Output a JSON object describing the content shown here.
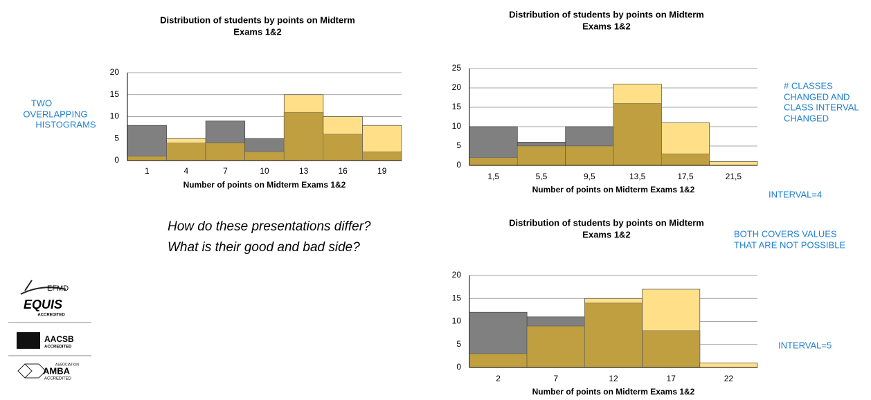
{
  "chart_data": [
    {
      "type": "bar",
      "title": [
        "Distribution of students by points on Midterm",
        "Exams 1&2"
      ],
      "xlabel": "Number of points on Midterm Exams 1&2",
      "categories": [
        1,
        4,
        7,
        10,
        13,
        16,
        19
      ],
      "series": [
        {
          "color": "#808080",
          "values": [
            8,
            4,
            9,
            5,
            11,
            6,
            2
          ]
        },
        {
          "color": "#ffe089",
          "values": [
            1,
            5,
            4,
            2,
            15,
            10,
            8
          ]
        }
      ],
      "overlap_color": "#bf9f3f",
      "ylim": [
        0,
        20
      ],
      "yticks": [
        0,
        5,
        10,
        15,
        20
      ],
      "grid": true
    },
    {
      "type": "bar",
      "title": [
        "Distribution of students by points on Midterm",
        "Exams 1&2"
      ],
      "xlabel": "Number of points on Midterm Exams 1&2",
      "categories": [
        "1,5",
        "5,5",
        "9,5",
        "13,5",
        "17,5",
        "21,5"
      ],
      "series": [
        {
          "color": "#808080",
          "values": [
            10,
            6,
            10,
            16,
            3,
            0
          ]
        },
        {
          "color": "#ffe089",
          "values": [
            2,
            5,
            5,
            21,
            11,
            1
          ]
        }
      ],
      "overlap_color": "#bf9f3f",
      "ylim": [
        0,
        25
      ],
      "yticks": [
        0,
        5,
        10,
        15,
        20,
        25
      ],
      "grid": true
    },
    {
      "type": "bar",
      "title": [
        "Distribution of students by points on Midterm",
        "Exams 1&2"
      ],
      "xlabel": "Number of points on Midterm Exams 1&2",
      "categories": [
        2,
        7,
        12,
        17,
        22
      ],
      "series": [
        {
          "color": "#808080",
          "values": [
            12,
            11,
            14,
            8,
            0
          ]
        },
        {
          "color": "#ffe089",
          "values": [
            3,
            9,
            15,
            17,
            1
          ]
        }
      ],
      "overlap_color": "#bf9f3f",
      "ylim": [
        0,
        20
      ],
      "yticks": [
        0,
        5,
        10,
        15,
        20
      ],
      "grid": true
    }
  ],
  "notes": {
    "left": [
      "TWO",
      "OVERLAPPING",
      "HISTOGRAMS"
    ],
    "right": [
      "# CLASSES",
      "CHANGED AND",
      "CLASS INTERVAL",
      "CHANGED"
    ],
    "interval4": "INTERVAL=4",
    "both": [
      "BOTH COVERS VALUES",
      "THAT ARE NOT POSSIBLE"
    ],
    "interval5": "INTERVAL=5"
  },
  "question": [
    "How do these presentations differ?",
    "What is their good and bad side?"
  ],
  "logos": {
    "efmd": "EFMD",
    "equis": "EQUIS",
    "equis_sub": "ACCREDITED",
    "aacsb": "AACSB",
    "aacsb_sub": "ACCREDITED",
    "amba_top": "ASSOCIATION",
    "amba": "AMBA",
    "amba_sub": "ACCREDITED"
  }
}
